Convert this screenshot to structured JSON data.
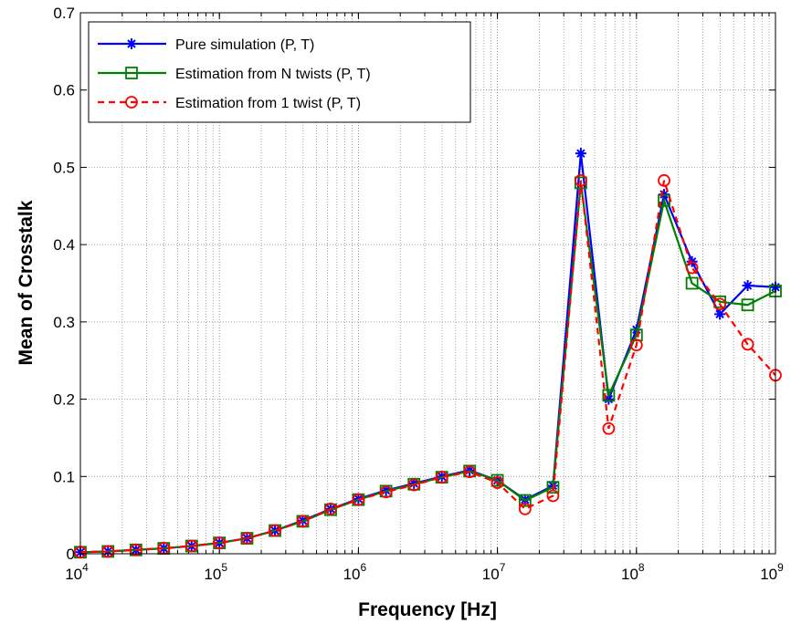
{
  "chart_data": {
    "type": "line",
    "xscale": "log",
    "xlim": [
      10000,
      1000000000
    ],
    "ylim": [
      0,
      0.7
    ],
    "xlabel": "Frequency [Hz]",
    "ylabel": "Mean of Crosstalk",
    "grid": true,
    "legend_position": "top-left",
    "x_ticks": [
      {
        "value": 10000,
        "base": "10",
        "exp": "4"
      },
      {
        "value": 100000,
        "base": "10",
        "exp": "5"
      },
      {
        "value": 1000000,
        "base": "10",
        "exp": "6"
      },
      {
        "value": 10000000,
        "base": "10",
        "exp": "7"
      },
      {
        "value": 100000000,
        "base": "10",
        "exp": "8"
      },
      {
        "value": 1000000000,
        "base": "10",
        "exp": "9"
      }
    ],
    "y_ticks": [
      {
        "value": 0,
        "label": "0"
      },
      {
        "value": 0.1,
        "label": "0.1"
      },
      {
        "value": 0.2,
        "label": "0.2"
      },
      {
        "value": 0.3,
        "label": "0.3"
      },
      {
        "value": 0.4,
        "label": "0.4"
      },
      {
        "value": 0.5,
        "label": "0.5"
      },
      {
        "value": 0.6,
        "label": "0.6"
      },
      {
        "value": 0.7,
        "label": "0.7"
      }
    ],
    "x": [
      10000,
      15800,
      25100,
      39800,
      63100,
      100000,
      158000,
      251000,
      398000,
      631000,
      1000000,
      1580000,
      2510000,
      3980000,
      6310000,
      10000000,
      15800000,
      25100000,
      39800000,
      63100000,
      100000000,
      158000000,
      251000000,
      398000000,
      631000000,
      1000000000
    ],
    "series": [
      {
        "name": "Pure simulation (P, T)",
        "color": "#0000ff",
        "line_style": "solid",
        "marker": "star",
        "values": [
          0.002,
          0.003,
          0.005,
          0.007,
          0.01,
          0.014,
          0.02,
          0.03,
          0.043,
          0.058,
          0.071,
          0.082,
          0.091,
          0.1,
          0.108,
          0.095,
          0.07,
          0.088,
          0.518,
          0.2,
          0.29,
          0.465,
          0.378,
          0.31,
          0.347,
          0.345
        ]
      },
      {
        "name": "Estimation from N twists (P, T)",
        "color": "#008000",
        "line_style": "solid",
        "marker": "square",
        "values": [
          0.002,
          0.003,
          0.005,
          0.007,
          0.01,
          0.014,
          0.02,
          0.03,
          0.042,
          0.057,
          0.07,
          0.081,
          0.09,
          0.099,
          0.107,
          0.095,
          0.069,
          0.086,
          0.48,
          0.205,
          0.283,
          0.457,
          0.35,
          0.326,
          0.322,
          0.34
        ]
      },
      {
        "name": "Estimation from 1 twist (P, T)",
        "color": "#ff0000",
        "line_style": "dashed",
        "marker": "circle",
        "values": [
          0.002,
          0.003,
          0.005,
          0.007,
          0.01,
          0.014,
          0.02,
          0.03,
          0.042,
          0.058,
          0.07,
          0.08,
          0.089,
          0.099,
          0.106,
          0.092,
          0.058,
          0.075,
          0.483,
          0.162,
          0.27,
          0.483,
          0.37,
          0.323,
          0.271,
          0.231
        ]
      }
    ]
  }
}
